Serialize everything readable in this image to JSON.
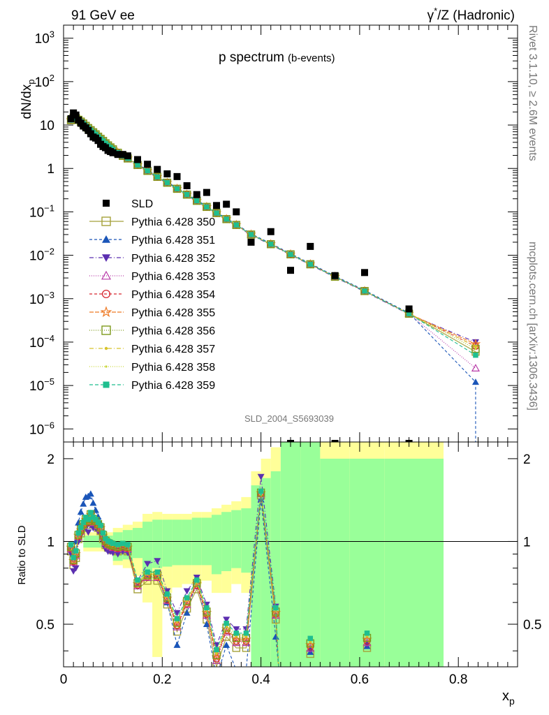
{
  "header": {
    "left": "91 GeV ee",
    "right_prefix": "γ",
    "right_sup": "*",
    "right_suffix": "/Z (Hadronic)"
  },
  "side_labels": {
    "rivet": "Rivet 3.1.10, ≥ 2.6M events",
    "mcplots": "mcplots.cern.ch [arXiv:1306.3436]"
  },
  "watermark": "SLD_2004_S5693039",
  "chart_data": [
    {
      "type": "scatter",
      "title": "p spectrum",
      "subtitle": "(b-events)",
      "ylabel": "dN/dx",
      "ylabel_sub": "p",
      "yscale": "log",
      "ylim": [
        5e-07,
        2000
      ],
      "xlim": [
        0,
        0.92
      ],
      "y_tick_labels": [
        {
          "v": 1000,
          "base": "10",
          "exp": "3"
        },
        {
          "v": 100,
          "base": "10",
          "exp": "2"
        },
        {
          "v": 10,
          "base": "10",
          "exp": ""
        },
        {
          "v": 1,
          "base": "1",
          "exp": ""
        },
        {
          "v": 0.1,
          "base": "10",
          "exp": "−1"
        },
        {
          "v": 0.01,
          "base": "10",
          "exp": "−2"
        },
        {
          "v": 0.001,
          "base": "10",
          "exp": "−3"
        },
        {
          "v": 0.0001,
          "base": "10",
          "exp": "−4"
        },
        {
          "v": 1e-05,
          "base": "10",
          "exp": "−5"
        },
        {
          "v": 1e-06,
          "base": "10",
          "exp": "−6"
        }
      ],
      "data": {
        "name": "SLD",
        "x": [
          0.015,
          0.02,
          0.025,
          0.03,
          0.035,
          0.04,
          0.045,
          0.05,
          0.055,
          0.06,
          0.065,
          0.07,
          0.075,
          0.08,
          0.085,
          0.09,
          0.095,
          0.1,
          0.11,
          0.12,
          0.13,
          0.15,
          0.17,
          0.19,
          0.21,
          0.23,
          0.25,
          0.27,
          0.29,
          0.31,
          0.33,
          0.35,
          0.38,
          0.42,
          0.46,
          0.5,
          0.55,
          0.61,
          0.7
        ],
        "y": [
          14,
          19,
          17,
          13,
          11,
          9.5,
          8.6,
          7.5,
          6.3,
          5.3,
          5.0,
          4.4,
          3.6,
          3.2,
          3.0,
          2.6,
          2.45,
          2.3,
          2.1,
          2.1,
          1.95,
          1.6,
          1.25,
          0.95,
          0.75,
          0.65,
          0.4,
          0.25,
          0.28,
          0.14,
          0.15,
          0.1,
          0.02,
          0.035,
          0.0045,
          0.016,
          0.0034,
          0.004,
          0.00058
        ]
      },
      "mc_x": [
        0.015,
        0.02,
        0.025,
        0.03,
        0.035,
        0.04,
        0.045,
        0.05,
        0.055,
        0.06,
        0.065,
        0.07,
        0.075,
        0.08,
        0.085,
        0.09,
        0.095,
        0.1,
        0.11,
        0.12,
        0.13,
        0.15,
        0.17,
        0.19,
        0.21,
        0.23,
        0.25,
        0.27,
        0.29,
        0.31,
        0.33,
        0.35,
        0.38,
        0.42,
        0.46,
        0.5,
        0.55,
        0.61,
        0.7,
        0.835
      ],
      "mc_base": [
        13,
        14.5,
        14.3,
        13.2,
        12,
        10.8,
        9.6,
        8.5,
        7.6,
        6.8,
        6.1,
        5.4,
        4.8,
        4.3,
        3.8,
        3.4,
        3.05,
        2.75,
        2.3,
        1.95,
        1.7,
        1.2,
        0.88,
        0.64,
        0.47,
        0.34,
        0.25,
        0.18,
        0.13,
        0.094,
        0.068,
        0.05,
        0.03,
        0.018,
        0.0105,
        0.0062,
        0.0032,
        0.0015,
        0.00045,
        7e-05
      ],
      "series": [
        {
          "name": "Pythia 6.428 350",
          "color": "#a5a13a",
          "marker": "square-open",
          "dash": "",
          "factor": 1.0,
          "end": 6e-05
        },
        {
          "name": "Pythia 6.428 351",
          "color": "#1a55b8",
          "marker": "triangle-up",
          "dash": "4,3",
          "factor": 1.04,
          "end": 1.2e-05
        },
        {
          "name": "Pythia 6.428 352",
          "color": "#5b2fb0",
          "marker": "triangle-down",
          "dash": "6,3,1,3",
          "factor": 0.97,
          "end": 0.0001
        },
        {
          "name": "Pythia 6.428 353",
          "color": "#b83aa8",
          "marker": "triangle-open",
          "dash": "1,2",
          "factor": 1.0,
          "end": 2.5e-05
        },
        {
          "name": "Pythia 6.428 354",
          "color": "#d6262f",
          "marker": "circle-open",
          "dash": "4,3",
          "factor": 1.0,
          "end": 8e-05
        },
        {
          "name": "Pythia 6.428 355",
          "color": "#ee7a25",
          "marker": "star-open",
          "dash": "6,2",
          "factor": 1.0,
          "end": 9e-05
        },
        {
          "name": "Pythia 6.428 356",
          "color": "#7d9a1c",
          "marker": "square-open",
          "dash": "1,2",
          "factor": 1.0,
          "end": 7e-05
        },
        {
          "name": "Pythia 6.428 357",
          "color": "#d7c32a",
          "marker": "dot",
          "dash": "6,3,1,3",
          "factor": 1.0,
          "end": 8e-05
        },
        {
          "name": "Pythia 6.428 358",
          "color": "#c9d63a",
          "marker": "dot-small",
          "dash": "1,2",
          "factor": 1.0,
          "end": 7e-05
        },
        {
          "name": "Pythia 6.428 359",
          "color": "#1fbf8f",
          "marker": "square-filled",
          "dash": "5,3",
          "factor": 1.0,
          "end": 5e-05
        }
      ]
    },
    {
      "type": "scatter",
      "title": "",
      "ylabel": "Ratio to SLD",
      "xlabel": "x",
      "xlabel_sub": "p",
      "ylim": [
        0.35,
        2.3
      ],
      "xlim": [
        0,
        0.92
      ],
      "y_ticks": [
        0.5,
        1,
        2
      ],
      "y_tick_labels": [
        "0.5",
        "1",
        "2"
      ],
      "x_ticks": [
        0,
        0.2,
        0.4,
        0.6,
        0.8
      ],
      "x_tick_labels": [
        "0",
        "0.2",
        "0.4",
        "0.6",
        "0.8"
      ],
      "ratio_bands": {
        "edges": [
          0.1,
          0.12,
          0.14,
          0.16,
          0.18,
          0.2,
          0.22,
          0.24,
          0.26,
          0.28,
          0.3,
          0.32,
          0.34,
          0.36,
          0.38,
          0.4,
          0.42,
          0.44,
          0.48,
          0.52,
          0.58,
          0.65,
          0.77
        ],
        "inner_lo": [
          0.85,
          0.86,
          0.87,
          0.72,
          0.8,
          0.81,
          0.82,
          0.82,
          0.82,
          0.82,
          0.76,
          0.78,
          0.8,
          0.77,
          0.3,
          0.2,
          0.3,
          0.3,
          0.3,
          0.3,
          0.3,
          0.3
        ],
        "inner_hi": [
          1.08,
          1.1,
          1.12,
          1.18,
          1.2,
          1.2,
          1.2,
          1.2,
          1.22,
          1.22,
          1.25,
          1.28,
          1.3,
          1.32,
          1.6,
          1.7,
          1.8,
          2.6,
          2.6,
          2.0,
          2.0,
          2.0
        ],
        "outer_lo": [
          0.82,
          0.8,
          0.75,
          0.6,
          0.42,
          0.65,
          0.68,
          0.7,
          0.7,
          0.72,
          0.65,
          0.65,
          0.7,
          0.65,
          0.3,
          0.2,
          0.3,
          0.3,
          0.3,
          0.3,
          0.3,
          0.3
        ],
        "outer_hi": [
          1.12,
          1.15,
          1.18,
          1.26,
          1.28,
          1.26,
          1.26,
          1.26,
          1.28,
          1.28,
          1.32,
          1.36,
          1.4,
          1.45,
          1.8,
          2.0,
          2.2,
          2.6,
          2.6,
          2.6,
          2.6,
          2.6
        ],
        "outer_lo_alt": [
          null,
          null,
          null,
          null,
          0.38,
          null,
          null,
          null,
          null,
          null,
          null,
          null,
          null,
          null,
          null,
          null,
          null,
          null,
          0.6,
          0.5,
          null,
          null
        ]
      },
      "ratio_x": [
        0.015,
        0.02,
        0.025,
        0.03,
        0.035,
        0.04,
        0.045,
        0.05,
        0.055,
        0.06,
        0.065,
        0.07,
        0.075,
        0.08,
        0.085,
        0.09,
        0.095,
        0.1,
        0.11,
        0.12,
        0.13,
        0.15,
        0.17,
        0.19,
        0.21,
        0.23,
        0.25,
        0.27,
        0.29,
        0.31,
        0.33,
        0.35,
        0.37,
        0.4,
        0.43
      ],
      "ratio_base": [
        0.95,
        0.85,
        0.9,
        1.05,
        1.1,
        1.15,
        1.2,
        1.18,
        1.25,
        1.2,
        1.18,
        1.15,
        1.12,
        1.05,
        1.0,
        0.98,
        0.97,
        0.96,
        0.95,
        0.96,
        0.95,
        0.7,
        0.75,
        0.75,
        0.62,
        0.5,
        0.6,
        0.7,
        0.55,
        0.38,
        0.48,
        0.44,
        0.44,
        1.5,
        0.55
      ],
      "ratio_shift": {
        "Pythia 6.428 351": [
          0.0,
          0.02,
          0.1,
          0.12,
          0.18,
          0.22,
          0.25,
          0.28,
          0.24,
          0.18,
          0.12,
          0.08,
          0.04,
          0.0,
          -0.02,
          -0.03,
          -0.03,
          -0.02,
          -0.02,
          -0.02,
          -0.02,
          0.0,
          0.0,
          0.0,
          -0.02,
          -0.08,
          -0.05,
          0.02,
          -0.05,
          -0.06,
          -0.06,
          -0.1,
          -0.1,
          -0.08,
          -0.1
        ],
        "Pythia 6.428 352": [
          -0.05,
          -0.07,
          -0.1,
          -0.05,
          -0.05,
          -0.05,
          -0.08,
          -0.1,
          -0.1,
          -0.08,
          -0.06,
          -0.06,
          -0.05,
          -0.05,
          -0.06,
          -0.06,
          -0.05,
          -0.05,
          -0.05,
          -0.04,
          -0.04,
          0.02,
          0.08,
          0.1,
          0.04,
          0.05,
          0.06,
          0.04,
          0.04,
          0.04,
          0.04,
          0.04,
          0.04,
          0.22,
          0.03
        ]
      },
      "ratio_tail": [
        {
          "x": 0.5,
          "y": 0.42
        },
        {
          "x": 0.615,
          "y": 0.44
        }
      ]
    }
  ]
}
